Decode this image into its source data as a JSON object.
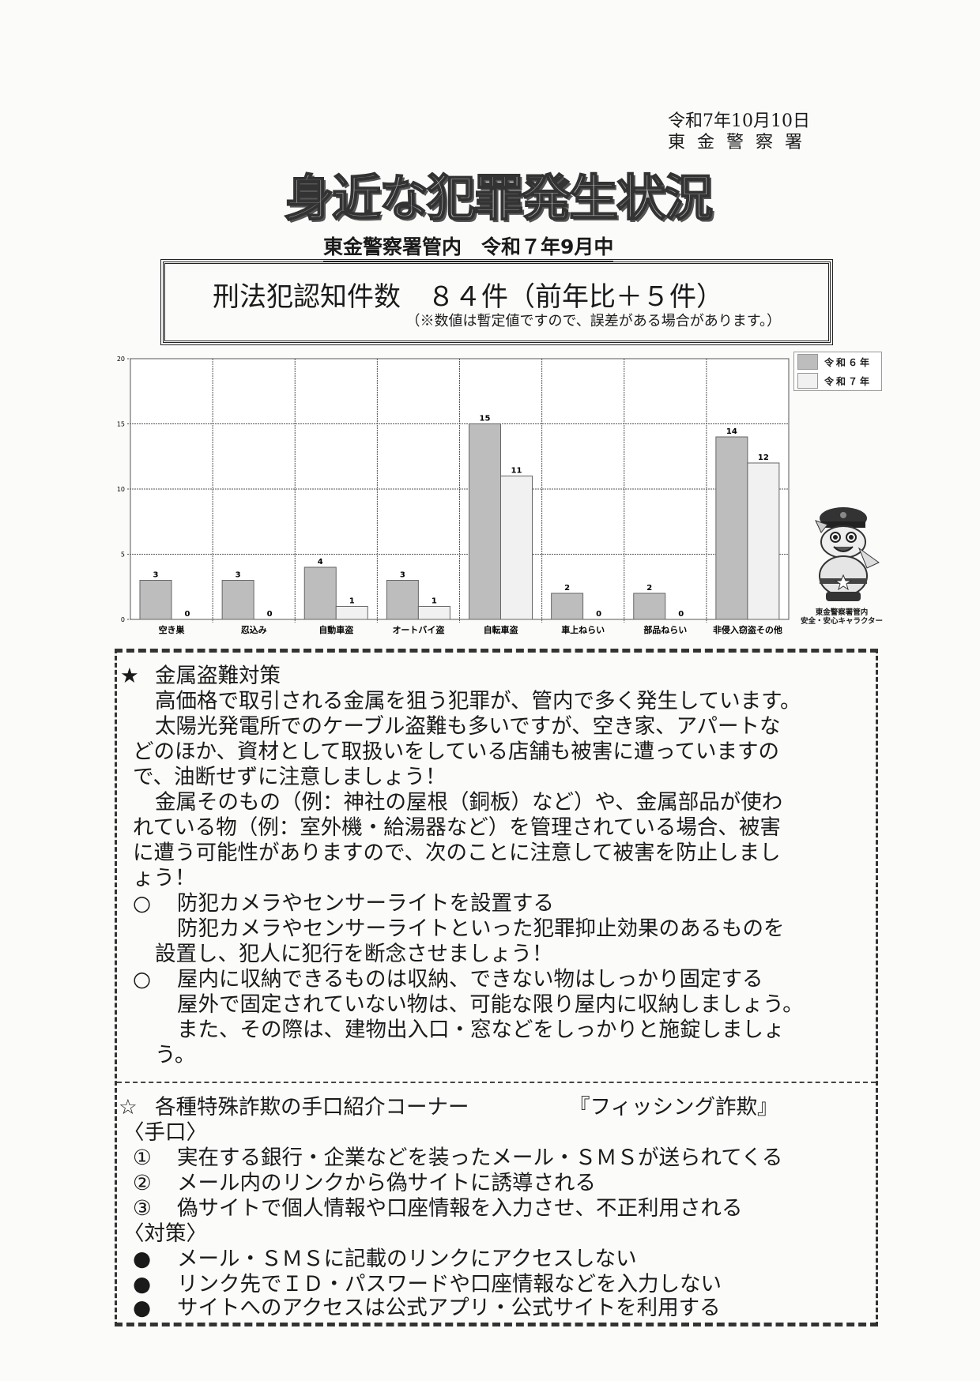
{
  "header": {
    "date": "令和7年10月10日",
    "issuer": "東金警察署",
    "banner_title": "身近な犯罪発生状況",
    "subtitle": "東金警察署管内　令和７年9月中"
  },
  "summary": {
    "main": "刑法犯認知件数　８４件（前年比＋５件）",
    "note": "（※数値は暫定値ですので、誤差がある場合があります。）"
  },
  "chart_data": {
    "type": "bar",
    "categories": [
      "空き巣",
      "忍込み",
      "自動車盗",
      "オートバイ盗",
      "自転車盗",
      "車上ねらい",
      "部品ねらい",
      "非侵入窃盗その他"
    ],
    "series": [
      {
        "name": "令和６年",
        "values": [
          3,
          3,
          4,
          3,
          15,
          2,
          2,
          14
        ],
        "color": "#bdbdbd"
      },
      {
        "name": "令和７年",
        "values": [
          0,
          0,
          1,
          1,
          11,
          0,
          0,
          12
        ],
        "color": "#f1f1f1"
      }
    ],
    "ylim": [
      0,
      20
    ],
    "yticks": [
      0,
      5,
      10,
      15,
      20
    ],
    "grid": true,
    "legend": "top-right",
    "data_labels": true
  },
  "mascot": {
    "caption_line1": "東金警察署管内",
    "caption_line2": "安全・安心キャラクター"
  },
  "metal_theft": {
    "heading_icon": "★",
    "heading": "金属盗難対策",
    "lines": [
      "高価格で取引される金属を狙う犯罪が、管内で多く発生しています。",
      "太陽光発電所でのケーブル盗難も多いですが、空き家、アパートな",
      "どのほか、資材として取扱いをしている店舗も被害に遭っていますの",
      "で、油断せずに注意しましょう！",
      "金属そのもの（例：神社の屋根（銅板）など）や、金属部品が使わ",
      "れている物（例：室外機・給湯器など）を管理されている場合、被害",
      "に遭う可能性がありますので、次のことに注意して被害を防止しまし",
      "ょう！"
    ],
    "measures": [
      {
        "bullet": "○",
        "title": "防犯カメラやセンサーライトを設置する",
        "lines": [
          "防犯カメラやセンサーライトといった犯罪抑止効果のあるものを",
          "設置し、犯人に犯行を断念させましょう！"
        ]
      },
      {
        "bullet": "○",
        "title": "屋内に収納できるものは収納、できない物はしっかり固定する",
        "lines": [
          "屋外で固定されていない物は、可能な限り屋内に収納しましょう。",
          "また、その際は、建物出入口・窓などをしっかりと施錠しましょ",
          "う。"
        ]
      }
    ]
  },
  "fraud": {
    "heading_icon": "☆",
    "heading": "各種特殊詐欺の手口紹介コーナー",
    "topic": "『フィッシング詐欺』",
    "methods_label": "〈手口〉",
    "methods": [
      {
        "num": "①",
        "text": "実在する銀行・企業などを装ったメール・ＳＭＳが送られてくる"
      },
      {
        "num": "②",
        "text": "メール内のリンクから偽サイトに誘導される"
      },
      {
        "num": "③",
        "text": "偽サイトで個人情報や口座情報を入力させ、不正利用される"
      }
    ],
    "countermeasures_label": "〈対策〉",
    "countermeasures": [
      {
        "bullet": "●",
        "text": "メール・ＳＭＳに記載のリンクにアクセスしない"
      },
      {
        "bullet": "●",
        "text": "リンク先でＩＤ・パスワードや口座情報などを入力しない"
      },
      {
        "bullet": "●",
        "text": "サイトへのアクセスは公式アプリ・公式サイトを利用する"
      }
    ]
  }
}
